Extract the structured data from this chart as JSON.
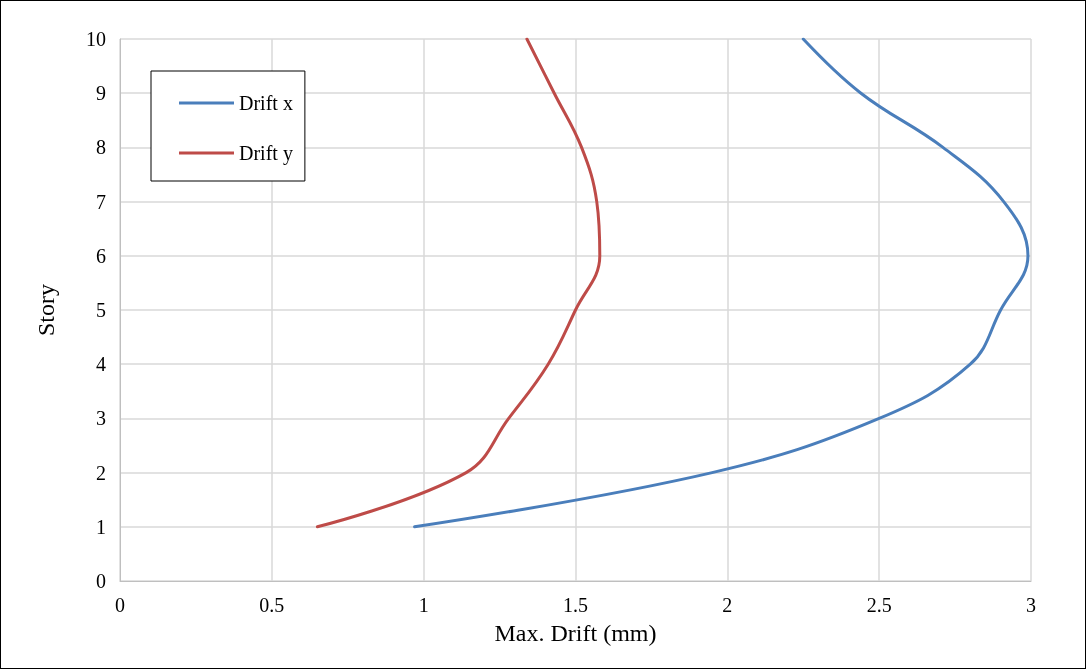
{
  "chart_data": {
    "type": "line",
    "xlabel": "Max. Drift (mm)",
    "ylabel": "Story",
    "xlim": [
      0,
      3
    ],
    "xticks": [
      0,
      0.5,
      1,
      1.5,
      2,
      2.5,
      3
    ],
    "ylim": [
      0,
      10
    ],
    "yticks": [
      0,
      1,
      2,
      3,
      4,
      5,
      6,
      7,
      8,
      9,
      10
    ],
    "grid": true,
    "legend": "top left",
    "marker": "none",
    "line_style": "solid",
    "series": [
      {
        "name": "Drift x",
        "color": "#4a7ebb",
        "x": [
          0.97,
          1.95,
          2.5,
          2.8,
          2.9,
          2.99,
          2.91,
          2.71,
          2.44,
          2.25
        ],
        "values": [
          1,
          2,
          3,
          4,
          5,
          6,
          7,
          8,
          9,
          10
        ]
      },
      {
        "name": "Drift y",
        "color": "#be4b48",
        "x": [
          0.65,
          1.14,
          1.28,
          1.41,
          1.5,
          1.58,
          1.57,
          1.52,
          1.43,
          1.34
        ],
        "values": [
          1,
          2,
          3,
          4,
          5,
          6,
          7,
          8,
          9,
          10
        ]
      }
    ]
  }
}
